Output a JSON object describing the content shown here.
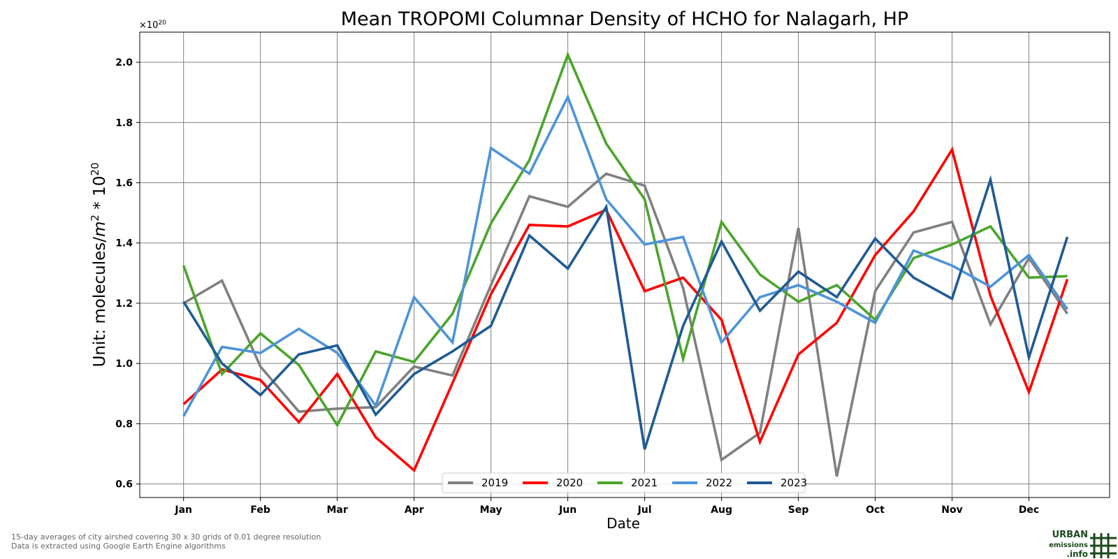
{
  "chart_data": {
    "type": "line",
    "title": "Mean TROPOMI Columnar Density of HCHO for Nalagarh, HP",
    "xlabel": "Date",
    "ylabel_main": "Unit: molecules/",
    "ylabel_unit": "m",
    "ylabel_sup": "2",
    "ylabel_tail": " * 10",
    "ylabel_sup2": "20",
    "y_multiplier_base": "×10",
    "y_multiplier_exp": "20",
    "ylim": [
      0.555,
      2.1
    ],
    "y_ticks": [
      0.6,
      0.8,
      1.0,
      1.2,
      1.4,
      1.6,
      1.8,
      2.0
    ],
    "y_tick_labels": [
      "0.6",
      "0.8",
      "1.0",
      "1.2",
      "1.4",
      "1.6",
      "1.8",
      "2.0"
    ],
    "x_ticks": [
      "Jan",
      "Feb",
      "Mar",
      "Apr",
      "May",
      "Jun",
      "Jul",
      "Aug",
      "Sep",
      "Oct",
      "Nov",
      "Dec"
    ],
    "x": [
      0,
      0.5,
      1,
      1.5,
      2,
      2.5,
      3,
      3.5,
      4,
      4.5,
      5,
      5.5,
      6,
      6.5,
      7,
      7.5,
      8,
      8.5,
      9,
      9.5,
      10,
      10.5,
      11,
      11.5
    ],
    "xlim": [
      -0.57,
      12.05
    ],
    "grid": true,
    "legend_placement": "bottom-center",
    "series": [
      {
        "name": "2019",
        "color": "#808080",
        "values": [
          1.2,
          1.275,
          0.99,
          0.84,
          0.85,
          0.855,
          0.99,
          0.96,
          1.26,
          1.555,
          1.52,
          1.63,
          1.59,
          1.25,
          0.68,
          0.77,
          1.45,
          0.625,
          1.24,
          1.435,
          1.47,
          1.13,
          1.35,
          1.165
        ]
      },
      {
        "name": "2020",
        "color": "#ff0000",
        "values": [
          0.865,
          0.98,
          0.945,
          0.805,
          0.965,
          0.755,
          0.645,
          0.935,
          1.23,
          1.46,
          1.455,
          1.51,
          1.24,
          1.285,
          1.145,
          0.74,
          1.03,
          1.135,
          1.36,
          1.505,
          1.71,
          1.225,
          0.905,
          1.28
        ]
      },
      {
        "name": "2021",
        "color": "#4ba52b",
        "values": [
          1.325,
          0.965,
          1.1,
          0.995,
          0.795,
          1.04,
          1.005,
          1.165,
          1.465,
          1.675,
          2.025,
          1.73,
          1.545,
          1.015,
          1.47,
          1.295,
          1.205,
          1.26,
          1.145,
          1.35,
          1.395,
          1.455,
          1.285,
          1.29
        ]
      },
      {
        "name": "2022",
        "color": "#4e94d8",
        "values": [
          0.825,
          1.055,
          1.035,
          1.115,
          1.035,
          0.86,
          1.22,
          1.07,
          1.715,
          1.63,
          1.885,
          1.545,
          1.395,
          1.42,
          1.07,
          1.22,
          1.26,
          1.205,
          1.135,
          1.375,
          1.325,
          1.255,
          1.36,
          1.18
        ]
      },
      {
        "name": "2023",
        "color": "#1f5b94",
        "values": [
          1.205,
          1.0,
          0.895,
          1.03,
          1.06,
          0.83,
          0.965,
          1.04,
          1.125,
          1.425,
          1.315,
          1.52,
          0.715,
          1.125,
          1.405,
          1.175,
          1.305,
          1.22,
          1.415,
          1.285,
          1.215,
          1.61,
          1.02,
          1.42
        ]
      }
    ]
  },
  "footer": {
    "line1": "15-day averages of city airshed covering 30 x 30 grids of 0.01 degree resolution",
    "line2": "Data is extracted using Google Earth Engine algorithms"
  },
  "logo": {
    "line1": "URBAN",
    "line2": "emissions",
    "line3": ".info"
  }
}
